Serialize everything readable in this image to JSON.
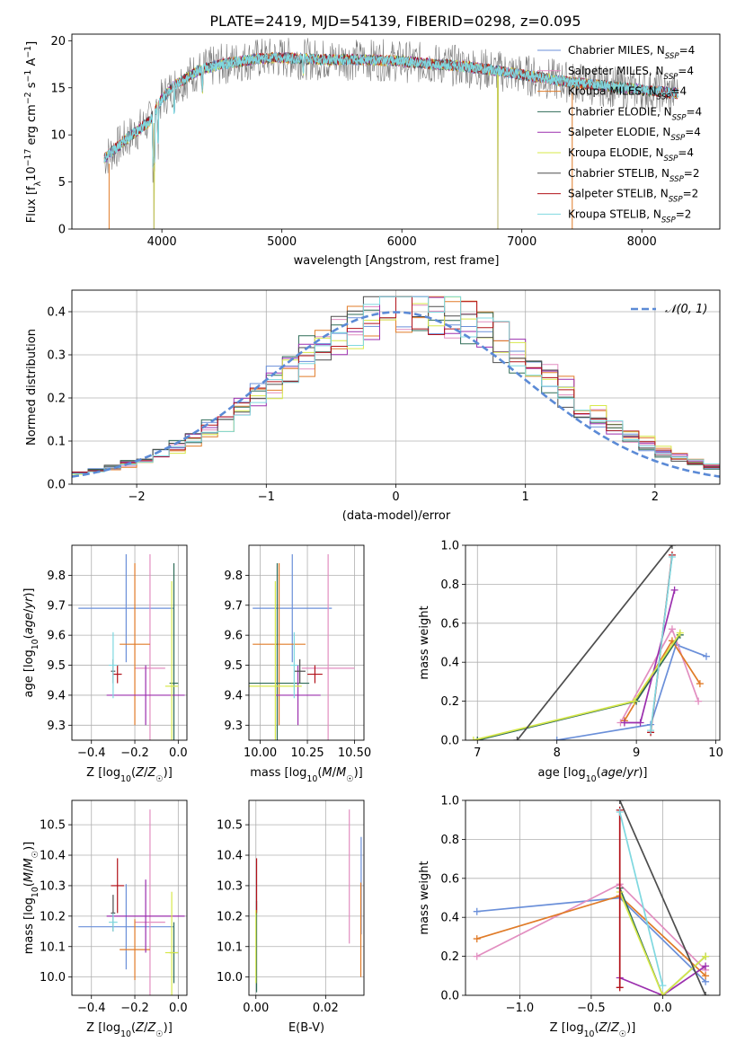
{
  "figure_title": "PLATE=2419, MJD=54139, FIBERID=0298, z=0.095",
  "colors": {
    "Chabrier MILES": "#6a8fd9",
    "Salpeter MILES": "#e28ec0",
    "Kroupa MILES": "#e07b28",
    "Chabrier ELODIE": "#2e6b57",
    "Salpeter ELODIE": "#9b2fae",
    "Kroupa ELODIE": "#d7e84a",
    "Chabrier STELIB": "#4d4d4d",
    "Salpeter STELIB": "#b2121a",
    "Kroupa STELIB": "#7fd8e0"
  },
  "chart_data": [
    {
      "id": "spectrum",
      "type": "line",
      "title": "PLATE=2419, MJD=54139, FIBERID=0298, z=0.095",
      "xlabel": "wavelength [Angstrom, rest frame]",
      "ylabel": "Flux [f_λ10^-17 erg cm^-2 s^-1 A^-1]",
      "xlim": [
        3250,
        8650
      ],
      "ylim": [
        0,
        20.7
      ],
      "xticks": [
        4000,
        5000,
        6000,
        7000,
        8000
      ],
      "yticks": [
        0,
        5,
        10,
        15,
        20
      ],
      "grid": false,
      "legend_position": "right",
      "legend": [
        {
          "name": "Chabrier MILES",
          "nssp": "4"
        },
        {
          "name": "Salpeter MILES",
          "nssp": "4"
        },
        {
          "name": "Kroupa MILES",
          "nssp": "4"
        },
        {
          "name": "Chabrier ELODIE",
          "nssp": "4"
        },
        {
          "name": "Salpeter ELODIE",
          "nssp": "4"
        },
        {
          "name": "Kroupa ELODIE",
          "nssp": "4"
        },
        {
          "name": "Chabrier STELIB",
          "nssp": "2"
        },
        {
          "name": "Salpeter STELIB",
          "nssp": "2"
        },
        {
          "name": "Kroupa STELIB",
          "nssp": "2"
        }
      ],
      "continuum": {
        "x": [
          3520,
          3700,
          3900,
          4000,
          4100,
          4300,
          4500,
          4800,
          5000,
          5300,
          5600,
          5900,
          6200,
          6500,
          6800,
          7100,
          7400,
          7700,
          8000,
          8300
        ],
        "y": [
          7.5,
          9.5,
          11.5,
          13.8,
          15.2,
          16.8,
          17.5,
          18.1,
          18.2,
          18.0,
          18.0,
          17.9,
          17.6,
          17.3,
          16.8,
          16.2,
          15.6,
          15.2,
          14.8,
          14.4
        ]
      },
      "absorption_features": [
        {
          "x": 3933,
          "y": 0
        },
        {
          "x": 6800,
          "y": 0
        },
        {
          "x": 7420,
          "y": 0
        },
        {
          "x": 3550,
          "y": 0
        }
      ]
    },
    {
      "id": "residuals",
      "type": "histogram",
      "xlabel": "(data-model)/error",
      "ylabel": "Normed distribution",
      "xlim": [
        -2.5,
        2.5
      ],
      "ylim": [
        0,
        0.45
      ],
      "xticks": [
        -2,
        -1,
        0,
        1,
        2
      ],
      "yticks": [
        0.0,
        0.1,
        0.2,
        0.3,
        0.4
      ],
      "grid": true,
      "legend_position": "top-right",
      "reference_curve": "𝒩(0, 1)",
      "bin_width": 0.125
    },
    {
      "id": "age-vs-z",
      "type": "errorbar",
      "xlabel": "Z [log10(Z/Z☉)]",
      "ylabel": "age [log10(age/yr)]",
      "xlim": [
        -0.49,
        0.04
      ],
      "ylim": [
        9.25,
        9.9
      ],
      "xticks": [
        -0.4,
        -0.2,
        0.0
      ],
      "yticks": [
        9.3,
        9.4,
        9.5,
        9.6,
        9.7,
        9.8
      ],
      "grid": true,
      "points": [
        {
          "series": "Chabrier MILES",
          "x": -0.24,
          "y": 9.69,
          "xerr": 0.22,
          "yerr": 0.18
        },
        {
          "series": "Salpeter MILES",
          "x": -0.13,
          "y": 9.49,
          "xerr": 0.07,
          "yerr": 0.38
        },
        {
          "series": "Kroupa MILES",
          "x": -0.2,
          "y": 9.57,
          "xerr": 0.07,
          "yerr": 0.27
        },
        {
          "series": "Chabrier ELODIE",
          "x": -0.02,
          "y": 9.44,
          "xerr": 0.02,
          "yerr": 0.4
        },
        {
          "series": "Salpeter ELODIE",
          "x": -0.15,
          "y": 9.4,
          "xerr": 0.18,
          "yerr": 0.1
        },
        {
          "series": "Kroupa ELODIE",
          "x": -0.03,
          "y": 9.43,
          "xerr": 0.03,
          "yerr": 0.35
        },
        {
          "series": "Chabrier STELIB",
          "x": -0.3,
          "y": 9.48,
          "xerr": 0.01,
          "yerr": 0.04
        },
        {
          "series": "Salpeter STELIB",
          "x": -0.28,
          "y": 9.47,
          "xerr": 0.02,
          "yerr": 0.03
        },
        {
          "series": "Kroupa STELIB",
          "x": -0.3,
          "y": 9.5,
          "xerr": 0.02,
          "yerr": 0.11
        }
      ]
    },
    {
      "id": "age-vs-mass",
      "type": "errorbar",
      "xlabel": "mass [log10(M/M☉)]",
      "ylabel": "",
      "xlim": [
        9.94,
        10.55
      ],
      "ylim": [
        9.25,
        9.9
      ],
      "xticks": [
        10.0,
        10.25,
        10.5
      ],
      "yticks": [
        9.3,
        9.4,
        9.5,
        9.6,
        9.7,
        9.8
      ],
      "grid": true,
      "points": [
        {
          "series": "Chabrier MILES",
          "x": 10.17,
          "y": 9.69,
          "xerr": 0.21,
          "yerr": 0.18
        },
        {
          "series": "Salpeter MILES",
          "x": 10.36,
          "y": 9.49,
          "xerr": 0.14,
          "yerr": 0.38
        },
        {
          "series": "Kroupa MILES",
          "x": 10.1,
          "y": 9.57,
          "xerr": 0.14,
          "yerr": 0.27
        },
        {
          "series": "Chabrier ELODIE",
          "x": 10.09,
          "y": 9.44,
          "xerr": 0.17,
          "yerr": 0.4
        },
        {
          "series": "Salpeter ELODIE",
          "x": 10.2,
          "y": 9.4,
          "xerr": 0.12,
          "yerr": 0.1
        },
        {
          "series": "Kroupa ELODIE",
          "x": 10.08,
          "y": 9.43,
          "xerr": 0.14,
          "yerr": 0.35
        },
        {
          "series": "Chabrier STELIB",
          "x": 10.21,
          "y": 9.48,
          "xerr": 0.03,
          "yerr": 0.04
        },
        {
          "series": "Salpeter STELIB",
          "x": 10.29,
          "y": 9.47,
          "xerr": 0.04,
          "yerr": 0.03
        },
        {
          "series": "Kroupa STELIB",
          "x": 10.18,
          "y": 9.5,
          "xerr": 0.02,
          "yerr": 0.11
        }
      ]
    },
    {
      "id": "weight-vs-age",
      "type": "line",
      "xlabel": "age [log10(age/yr)]",
      "ylabel": "mass weight",
      "xlim": [
        6.85,
        10.05
      ],
      "ylim": [
        0,
        1
      ],
      "xticks": [
        7,
        8,
        9,
        10
      ],
      "yticks": [
        0.0,
        0.2,
        0.4,
        0.6,
        0.8,
        1.0
      ],
      "grid": true,
      "series": [
        {
          "name": "Chabrier MILES",
          "x": [
            8.0,
            9.18,
            9.5,
            9.88
          ],
          "y": [
            0.0,
            0.08,
            0.49,
            0.43
          ]
        },
        {
          "name": "Salpeter MILES",
          "x": [
            8.8,
            9.45,
            9.78
          ],
          "y": [
            0.09,
            0.57,
            0.2
          ]
        },
        {
          "name": "Kroupa MILES",
          "x": [
            8.85,
            9.45,
            9.8
          ],
          "y": [
            0.1,
            0.51,
            0.29
          ]
        },
        {
          "name": "Chabrier ELODIE",
          "x": [
            7.0,
            9.0,
            9.55
          ],
          "y": [
            0.0,
            0.2,
            0.54
          ]
        },
        {
          "name": "Salpeter ELODIE",
          "x": [
            8.85,
            9.05,
            9.48
          ],
          "y": [
            0.09,
            0.09,
            0.77
          ]
        },
        {
          "name": "Kroupa ELODIE",
          "x": [
            6.95,
            8.97,
            9.55
          ],
          "y": [
            0.0,
            0.2,
            0.55
          ]
        },
        {
          "name": "Chabrier STELIB",
          "x": [
            7.5,
            9.45
          ],
          "y": [
            0.0,
            1.0
          ]
        },
        {
          "name": "Salpeter STELIB",
          "x": [
            9.18,
            9.45
          ],
          "y": [
            0.04,
            0.95
          ]
        },
        {
          "name": "Kroupa STELIB",
          "x": [
            9.18,
            9.45
          ],
          "y": [
            0.05,
            0.94
          ]
        }
      ]
    },
    {
      "id": "mass-vs-z",
      "type": "errorbar",
      "xlabel": "Z [log10(Z/Z☉)]",
      "ylabel": "mass [log10(M/M☉)]",
      "xlim": [
        -0.49,
        0.04
      ],
      "ylim": [
        9.94,
        10.58
      ],
      "xticks": [
        -0.4,
        -0.2,
        0.0
      ],
      "yticks": [
        10.0,
        10.1,
        10.2,
        10.3,
        10.4,
        10.5
      ],
      "grid": true,
      "points": [
        {
          "series": "Chabrier MILES",
          "x": -0.24,
          "y": 10.165,
          "xerr": 0.22,
          "yerr": 0.14
        },
        {
          "series": "Salpeter MILES",
          "x": -0.13,
          "y": 10.18,
          "xerr": 0.07,
          "yerr": 0.37
        },
        {
          "series": "Kroupa MILES",
          "x": -0.2,
          "y": 10.09,
          "xerr": 0.07,
          "yerr": 0.1
        },
        {
          "series": "Chabrier ELODIE",
          "x": -0.02,
          "y": 10.08,
          "xerr": 0.02,
          "yerr": 0.1
        },
        {
          "series": "Salpeter ELODIE",
          "x": -0.15,
          "y": 10.2,
          "xerr": 0.18,
          "yerr": 0.12
        },
        {
          "series": "Kroupa ELODIE",
          "x": -0.03,
          "y": 10.08,
          "xerr": 0.03,
          "yerr": 0.2
        },
        {
          "series": "Chabrier STELIB",
          "x": -0.3,
          "y": 10.21,
          "xerr": 0.01,
          "yerr": 0.06
        },
        {
          "series": "Salpeter STELIB",
          "x": -0.28,
          "y": 10.3,
          "xerr": 0.03,
          "yerr": 0.09
        },
        {
          "series": "Kroupa STELIB",
          "x": -0.3,
          "y": 10.18,
          "xerr": 0.02,
          "yerr": 0.03
        }
      ]
    },
    {
      "id": "mass-vs-ebv",
      "type": "errorbar",
      "xlabel": "E(B-V)",
      "ylabel": "",
      "xlim": [
        -0.002,
        0.031
      ],
      "ylim": [
        9.94,
        10.58
      ],
      "xticks": [
        0.0,
        0.02
      ],
      "yticks": [
        10.0,
        10.1,
        10.2,
        10.3,
        10.4,
        10.5
      ],
      "grid": true,
      "points": [
        {
          "series": "Chabrier MILES",
          "x": 0.0302,
          "y": 10.3,
          "xerr": 0,
          "yerr": 0.16
        },
        {
          "series": "Salpeter MILES",
          "x": 0.0268,
          "y": 10.33,
          "xerr": 0,
          "yerr": 0.22
        },
        {
          "series": "Kroupa MILES",
          "x": 0.0301,
          "y": 10.155,
          "xerr": 0,
          "yerr": 0.155
        },
        {
          "series": "Chabrier ELODIE",
          "x": 0.0002,
          "y": 10.1,
          "xerr": 0,
          "yerr": 0.15
        },
        {
          "series": "Salpeter STELIB",
          "x": 0.0002,
          "y": 10.3,
          "xerr": 0,
          "yerr": 0.09
        },
        {
          "series": "Kroupa ELODIE",
          "x": 0.0,
          "y": 10.1,
          "xerr": 0,
          "yerr": 0.12
        }
      ]
    },
    {
      "id": "weight-vs-z",
      "type": "line",
      "xlabel": "Z [log10(Z/Z☉)]",
      "ylabel": "mass weight",
      "xlim": [
        -1.38,
        0.4
      ],
      "ylim": [
        0,
        1
      ],
      "xticks": [
        -1.0,
        -0.5,
        0.0
      ],
      "yticks": [
        0.0,
        0.2,
        0.4,
        0.6,
        0.8,
        1.0
      ],
      "grid": true,
      "series": [
        {
          "name": "Chabrier MILES",
          "x": [
            -1.3,
            -0.3,
            0.3
          ],
          "y": [
            0.43,
            0.5,
            0.07
          ]
        },
        {
          "name": "Salpeter MILES",
          "x": [
            -1.3,
            -0.3,
            0.3
          ],
          "y": [
            0.2,
            0.57,
            0.13
          ]
        },
        {
          "name": "Kroupa MILES",
          "x": [
            -1.3,
            -0.3,
            0.3
          ],
          "y": [
            0.29,
            0.51,
            0.1
          ]
        },
        {
          "name": "Chabrier ELODIE",
          "x": [
            -0.3,
            0.0,
            0.3
          ],
          "y": [
            0.55,
            0.0,
            0.2
          ]
        },
        {
          "name": "Salpeter ELODIE",
          "x": [
            -0.3,
            0.0,
            0.3
          ],
          "y": [
            0.09,
            0.0,
            0.15
          ]
        },
        {
          "name": "Kroupa ELODIE",
          "x": [
            -0.3,
            0.0,
            0.3
          ],
          "y": [
            0.53,
            0.0,
            0.2
          ]
        },
        {
          "name": "Chabrier STELIB",
          "x": [
            -0.3,
            0.3
          ],
          "y": [
            1.0,
            0.0
          ]
        },
        {
          "name": "Salpeter STELIB",
          "x": [
            -0.3,
            -0.3
          ],
          "y": [
            0.04,
            0.95
          ]
        },
        {
          "name": "Kroupa STELIB",
          "x": [
            -0.3,
            0.0
          ],
          "y": [
            0.94,
            0.05
          ]
        }
      ]
    }
  ]
}
